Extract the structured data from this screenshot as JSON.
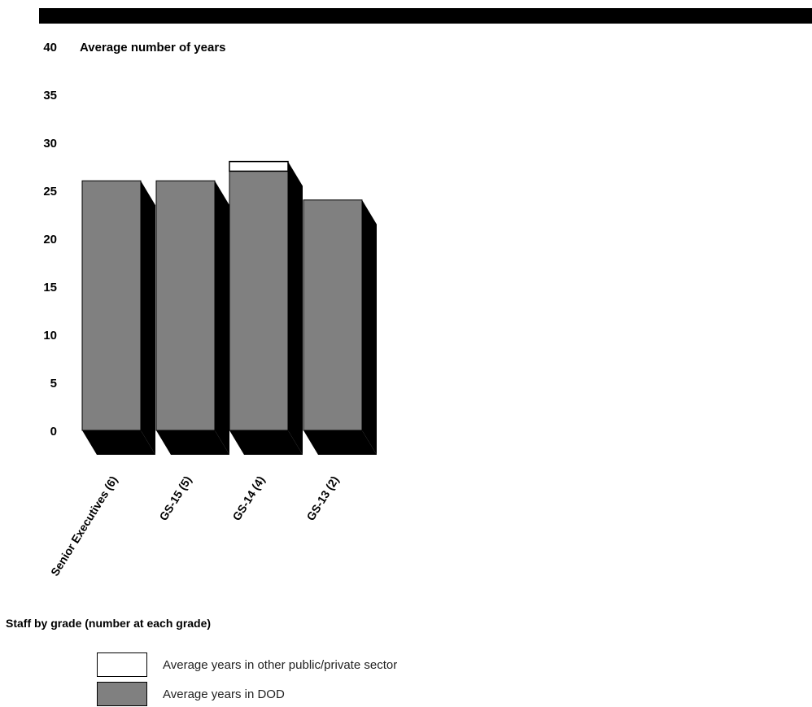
{
  "chart_data": {
    "type": "bar",
    "stacked": true,
    "title": "",
    "ylabel": "Average number of years",
    "xlabel": "Staff by grade (number at each grade)",
    "ylim": [
      0,
      40
    ],
    "yticks": [
      0,
      5,
      10,
      15,
      20,
      25,
      30,
      35,
      40
    ],
    "categories": [
      "Senior Executives (6)",
      "GS-15 (5)",
      "GS-14 (4)",
      "GS-13 (2)"
    ],
    "series": [
      {
        "name": "Average years in DOD",
        "color": "#808080",
        "values": [
          26,
          26,
          27,
          24
        ]
      },
      {
        "name": "Average years in other public/private sector",
        "color": "#ffffff",
        "values": [
          0,
          0,
          1,
          0
        ]
      }
    ],
    "legend_position": "bottom-left",
    "grid": false
  }
}
